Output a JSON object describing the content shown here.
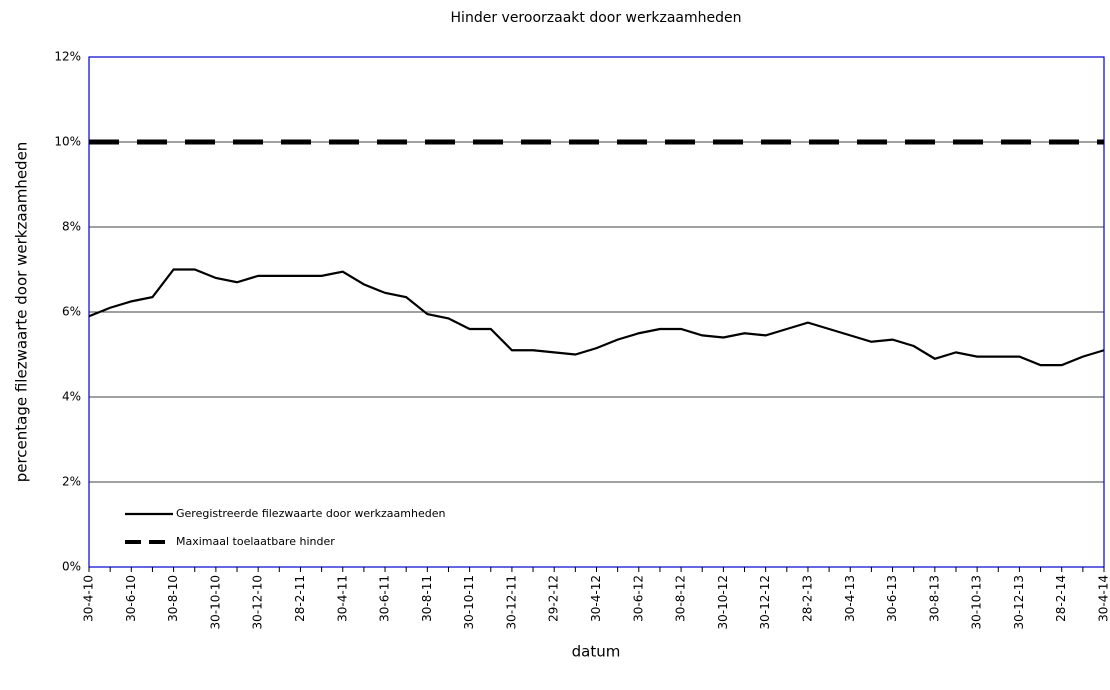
{
  "chart_data": {
    "type": "line",
    "title": "Hinder veroorzaakt door werkzaamheden",
    "x_label": "datum",
    "y_label": "percentage filezwaarte door werkzaamheden",
    "categories": [
      "30-4-10",
      null,
      "30-6-10",
      null,
      "30-8-10",
      null,
      "30-10-10",
      null,
      "30-12-10",
      null,
      "28-2-11",
      null,
      "30-4-11",
      null,
      "30-6-11",
      null,
      "30-8-11",
      null,
      "30-10-11",
      null,
      "30-12-11",
      null,
      "29-2-12",
      null,
      "30-4-12",
      null,
      "30-6-12",
      null,
      "30-8-12",
      null,
      "30-10-12",
      null,
      "30-12-12",
      null,
      "28-2-13",
      null,
      "30-4-13",
      null,
      "30-6-13",
      null,
      "30-8-13",
      null,
      "30-10-13",
      null,
      "30-12-13",
      null,
      "28-2-14",
      null,
      "30-4-14"
    ],
    "series": [
      {
        "name": "Geregistreerde filezwaarte door werkzaamheden",
        "color": "#000000",
        "style": "solid",
        "values": [
          5.9,
          6.1,
          6.25,
          6.35,
          7.0,
          7.0,
          6.8,
          6.7,
          6.85,
          6.85,
          6.85,
          6.85,
          6.95,
          6.65,
          6.45,
          6.35,
          5.95,
          5.85,
          5.6,
          5.6,
          5.1,
          5.1,
          5.05,
          5.0,
          5.15,
          5.35,
          5.5,
          5.6,
          5.6,
          5.45,
          5.4,
          5.5,
          5.45,
          5.6,
          5.75,
          5.6,
          5.45,
          5.3,
          5.35,
          5.2,
          4.9,
          5.05,
          4.95,
          4.95,
          4.95,
          4.75,
          4.75,
          4.95,
          5.1
        ]
      },
      {
        "name": "Maximaal toelaatbare hinder",
        "color": "#000000",
        "style": "dashed",
        "values": [
          10,
          10,
          10,
          10,
          10,
          10,
          10,
          10,
          10,
          10,
          10,
          10,
          10,
          10,
          10,
          10,
          10,
          10,
          10,
          10,
          10,
          10,
          10,
          10,
          10,
          10,
          10,
          10,
          10,
          10,
          10,
          10,
          10,
          10,
          10,
          10,
          10,
          10,
          10,
          10,
          10,
          10,
          10,
          10,
          10,
          10,
          10,
          10,
          10
        ]
      }
    ],
    "ylim": [
      0,
      12
    ],
    "yticks": [
      {
        "value": 0,
        "label": "0%"
      },
      {
        "value": 2,
        "label": "2%"
      },
      {
        "value": 4,
        "label": "4%"
      },
      {
        "value": 6,
        "label": "6%"
      },
      {
        "value": 8,
        "label": "8%"
      },
      {
        "value": 10,
        "label": "10%"
      },
      {
        "value": 12,
        "label": "12%"
      }
    ],
    "grid": true,
    "legend": "lower-left"
  }
}
